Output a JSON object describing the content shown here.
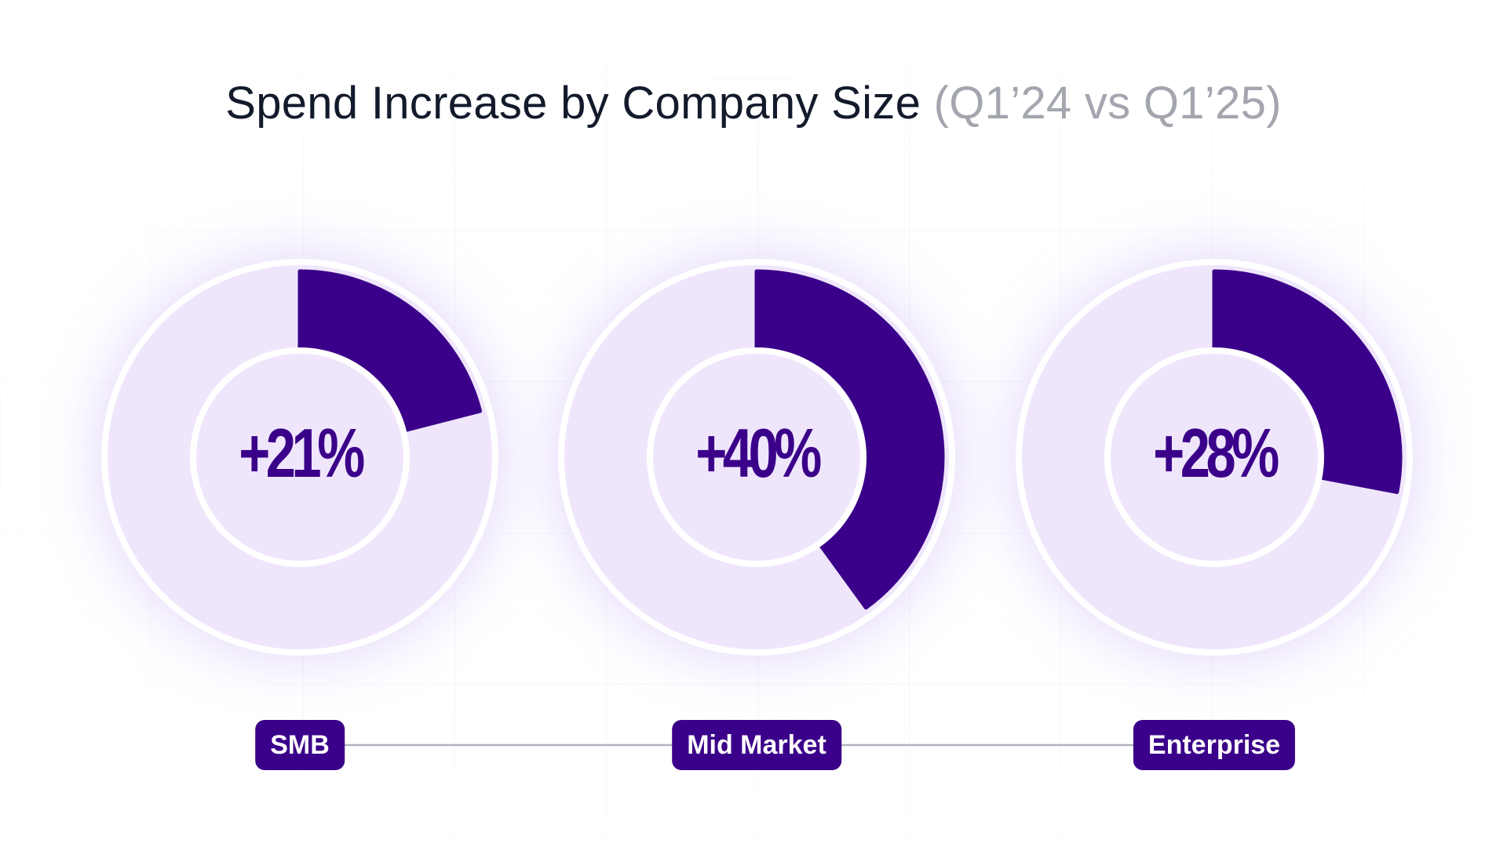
{
  "title": "Spend Increase by Company Size",
  "title_suffix": "(Q1’24 vs Q1’25)",
  "colors": {
    "accent": "#3b0089",
    "track": "#efe6fc",
    "ring_border": "#ffffff",
    "glow": "#c9b3f6",
    "connector": "#a9adb8",
    "title": "#121a2b",
    "title_suffix": "#a3a6ae"
  },
  "chart_data": {
    "type": "pie",
    "title": "Spend Increase by Company Size (Q1’24 vs Q1’25)",
    "unit": "%",
    "categories": [
      "SMB",
      "Mid Market",
      "Enterprise"
    ],
    "values": [
      21,
      40,
      28
    ],
    "labels": [
      "+21%",
      "+40%",
      "+28%"
    ]
  }
}
